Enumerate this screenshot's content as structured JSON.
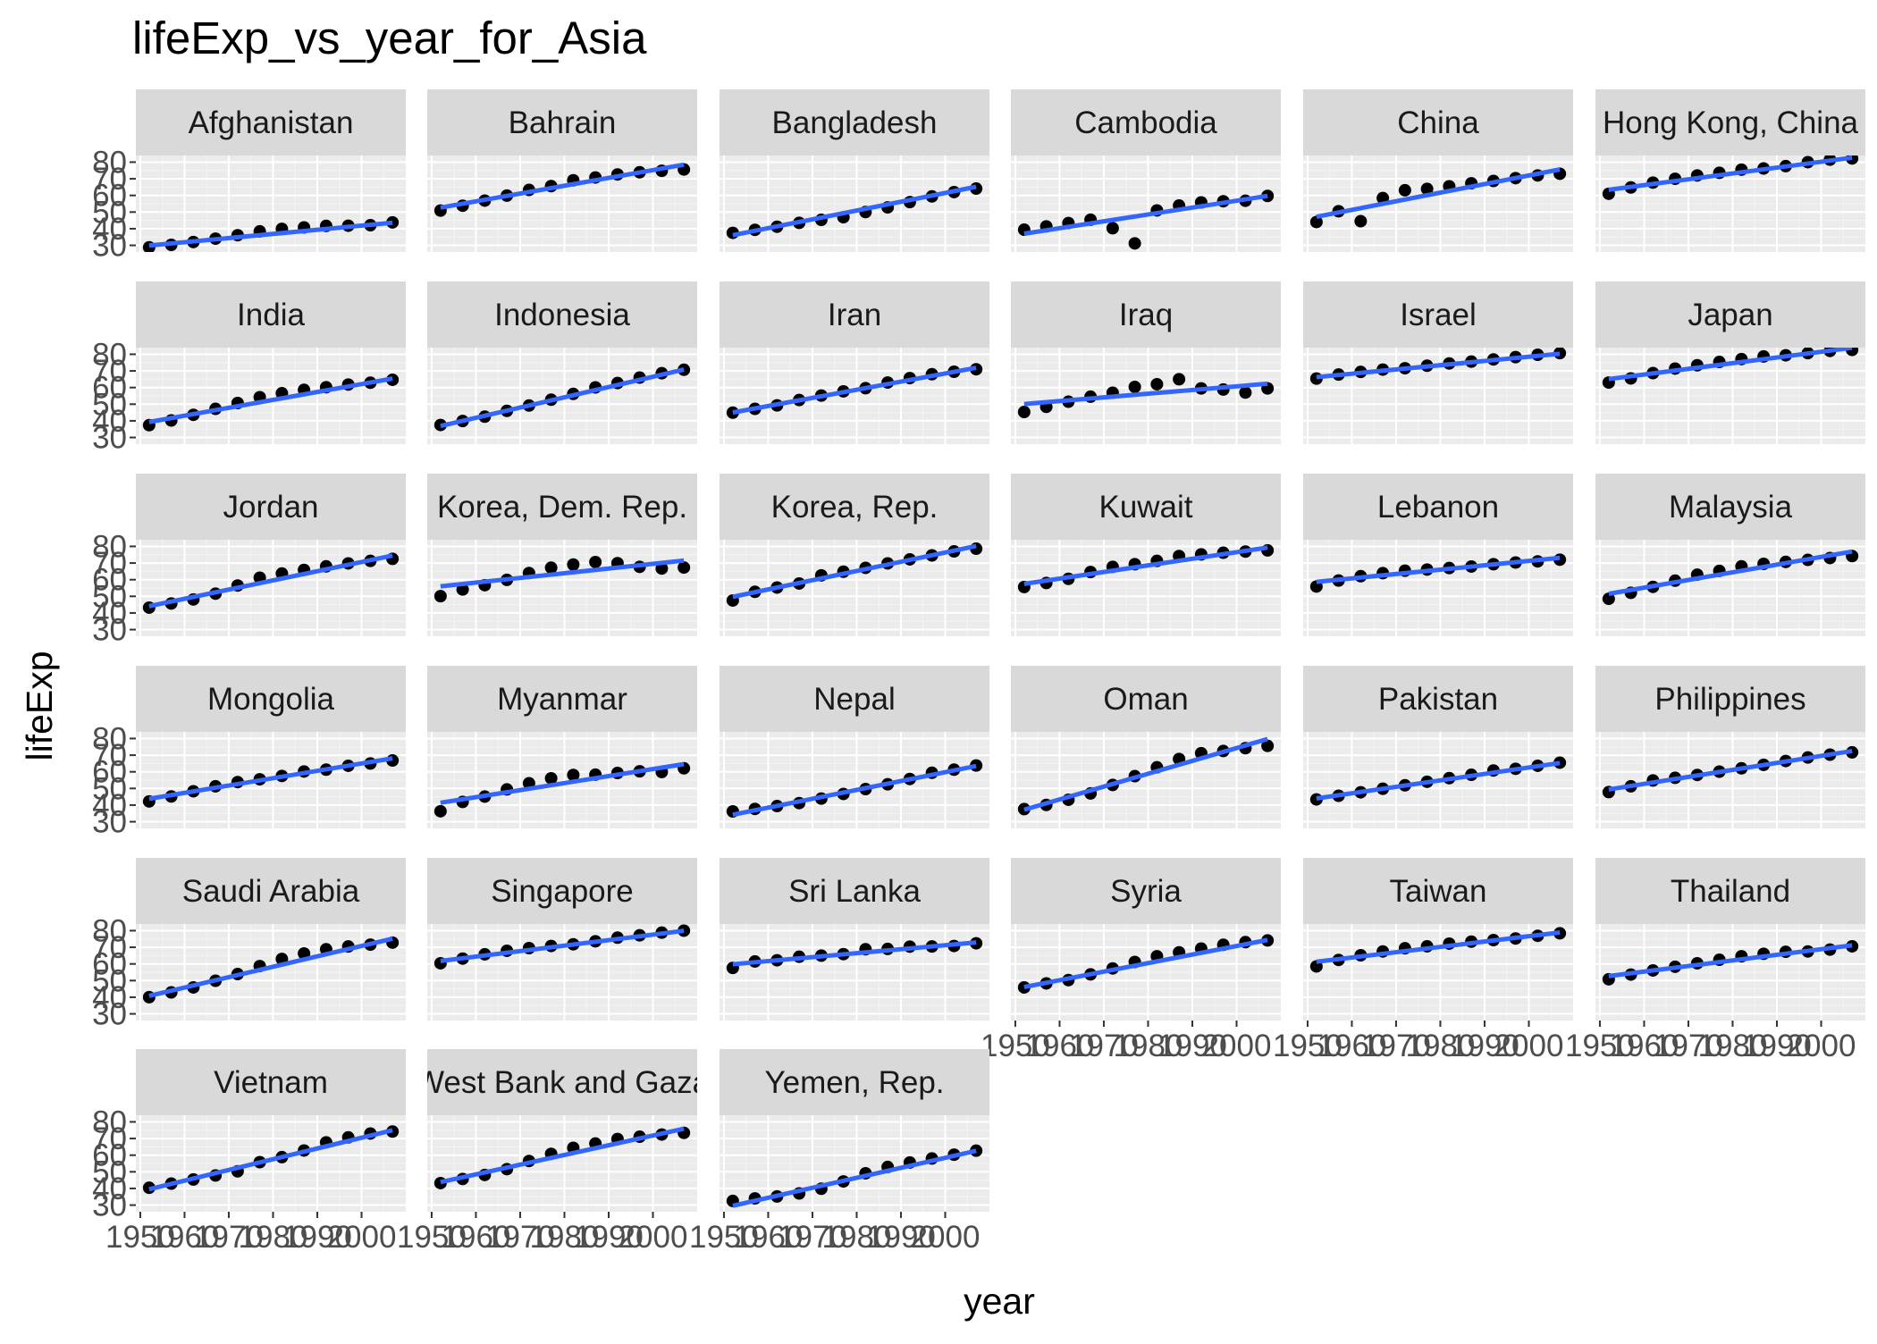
{
  "chart_data": {
    "type": "scatter",
    "title": "lifeExp_vs_year_for_Asia",
    "xlabel": "year",
    "ylabel": "lifeExp",
    "xlim": [
      1949,
      2010
    ],
    "ylim": [
      26,
      84
    ],
    "x_ticks": [
      1950,
      1960,
      1970,
      1980,
      1990,
      2000
    ],
    "x_tick_labels": [
      "1950",
      "1960",
      "1970",
      "1980",
      "1990",
      "2000"
    ],
    "y_ticks": [
      30,
      40,
      50,
      60,
      70,
      80
    ],
    "y_tick_labels": [
      "30",
      "40",
      "50",
      "60",
      "70",
      "80"
    ],
    "facet_columns": 6,
    "grid": true,
    "panel_background": "#ebebeb",
    "strip_background": "#d9d9d9",
    "point_color": "#000000",
    "line_color": "#3366ff",
    "years": [
      1952,
      1957,
      1962,
      1967,
      1972,
      1977,
      1982,
      1987,
      1992,
      1997,
      2002,
      2007
    ],
    "panels": [
      {
        "name": "Afghanistan",
        "lifeExp": [
          28.8,
          30.3,
          32.0,
          34.0,
          36.1,
          38.4,
          39.9,
          40.8,
          41.7,
          41.8,
          42.1,
          43.8
        ],
        "fit": [
          29.9,
          43.6
        ]
      },
      {
        "name": "Bahrain",
        "lifeExp": [
          50.9,
          53.8,
          56.9,
          59.9,
          63.3,
          65.6,
          69.1,
          70.8,
          72.6,
          73.9,
          74.8,
          75.6
        ],
        "fit": [
          52.7,
          78.5
        ]
      },
      {
        "name": "Bangladesh",
        "lifeExp": [
          37.5,
          39.3,
          41.2,
          43.5,
          45.3,
          46.9,
          50.0,
          52.8,
          56.0,
          59.4,
          62.0,
          64.1
        ],
        "fit": [
          36.1,
          65.2
        ]
      },
      {
        "name": "Cambodia",
        "lifeExp": [
          39.4,
          41.4,
          43.4,
          45.4,
          40.3,
          31.2,
          51.0,
          53.9,
          55.8,
          56.5,
          56.8,
          59.7
        ],
        "fit": [
          37.0,
          59.7
        ]
      },
      {
        "name": "China",
        "lifeExp": [
          44.0,
          50.5,
          44.5,
          58.4,
          63.1,
          63.9,
          65.5,
          67.3,
          68.7,
          70.4,
          72.0,
          73.0
        ],
        "fit": [
          47.2,
          75.6
        ]
      },
      {
        "name": "Hong Kong, China",
        "lifeExp": [
          61.0,
          64.8,
          67.7,
          70.0,
          72.0,
          73.6,
          75.5,
          76.2,
          77.6,
          80.0,
          81.5,
          82.2
        ],
        "fit": [
          63.4,
          82.7
        ]
      },
      {
        "name": "India",
        "lifeExp": [
          37.4,
          40.2,
          43.6,
          47.2,
          50.7,
          54.2,
          56.6,
          58.6,
          60.2,
          61.8,
          62.9,
          64.7
        ],
        "fit": [
          39.3,
          65.4
        ]
      },
      {
        "name": "Indonesia",
        "lifeExp": [
          37.5,
          39.9,
          42.5,
          46.0,
          49.2,
          52.7,
          56.2,
          60.1,
          62.7,
          66.0,
          68.6,
          70.7
        ],
        "fit": [
          36.9,
          70.8
        ]
      },
      {
        "name": "Iran",
        "lifeExp": [
          44.9,
          47.2,
          49.3,
          52.5,
          55.2,
          57.7,
          59.6,
          63.0,
          65.7,
          68.0,
          69.5,
          71.0
        ],
        "fit": [
          45.0,
          71.9
        ]
      },
      {
        "name": "Iraq",
        "lifeExp": [
          45.3,
          48.4,
          51.5,
          54.5,
          56.9,
          60.4,
          62.0,
          65.0,
          59.5,
          58.8,
          57.0,
          59.5
        ],
        "fit": [
          50.1,
          62.3
        ]
      },
      {
        "name": "Israel",
        "lifeExp": [
          65.4,
          67.8,
          69.4,
          70.8,
          71.6,
          73.1,
          74.5,
          75.6,
          76.9,
          78.3,
          79.7,
          80.7
        ],
        "fit": [
          66.3,
          80.3
        ]
      },
      {
        "name": "Japan",
        "lifeExp": [
          63.0,
          65.5,
          68.7,
          71.4,
          73.4,
          75.4,
          77.1,
          78.7,
          79.4,
          80.7,
          82.0,
          82.6
        ],
        "fit": [
          65.1,
          83.9
        ]
      },
      {
        "name": "Jordan",
        "lifeExp": [
          43.2,
          45.7,
          48.1,
          51.6,
          56.5,
          61.2,
          63.7,
          65.9,
          68.0,
          69.8,
          71.3,
          72.5
        ],
        "fit": [
          44.1,
          74.5
        ]
      },
      {
        "name": "Korea, Dem. Rep.",
        "lifeExp": [
          50.1,
          54.1,
          56.7,
          59.9,
          64.0,
          67.2,
          69.1,
          70.6,
          69.9,
          67.7,
          66.7,
          67.3
        ],
        "fit": [
          56.0,
          71.5
        ]
      },
      {
        "name": "Korea, Rep.",
        "lifeExp": [
          47.5,
          52.7,
          55.3,
          57.7,
          62.6,
          64.8,
          67.1,
          69.8,
          72.2,
          74.6,
          77.0,
          78.6
        ],
        "fit": [
          49.7,
          80.2
        ]
      },
      {
        "name": "Kuwait",
        "lifeExp": [
          55.6,
          58.0,
          60.5,
          64.6,
          67.7,
          69.3,
          71.3,
          74.2,
          75.2,
          76.2,
          76.9,
          77.6
        ],
        "fit": [
          57.5,
          79.3
        ]
      },
      {
        "name": "Lebanon",
        "lifeExp": [
          55.9,
          59.5,
          62.1,
          63.9,
          65.4,
          66.1,
          67.0,
          67.9,
          69.3,
          70.3,
          71.0,
          72.0
        ],
        "fit": [
          58.7,
          73.1
        ]
      },
      {
        "name": "Malaysia",
        "lifeExp": [
          48.5,
          52.1,
          55.7,
          59.4,
          63.0,
          65.3,
          68.0,
          69.5,
          70.7,
          71.9,
          73.0,
          74.2
        ],
        "fit": [
          51.5,
          76.9
        ]
      },
      {
        "name": "Mongolia",
        "lifeExp": [
          42.2,
          45.2,
          48.3,
          51.3,
          53.8,
          55.5,
          57.5,
          60.2,
          61.3,
          63.6,
          65.0,
          66.8
        ],
        "fit": [
          43.8,
          68.1
        ]
      },
      {
        "name": "Myanmar",
        "lifeExp": [
          36.3,
          41.9,
          45.1,
          49.4,
          53.1,
          56.1,
          58.1,
          58.3,
          59.3,
          60.3,
          59.9,
          62.1
        ],
        "fit": [
          41.4,
          64.6
        ]
      },
      {
        "name": "Nepal",
        "lifeExp": [
          36.2,
          37.7,
          39.4,
          41.2,
          43.9,
          46.7,
          49.6,
          52.5,
          55.7,
          59.4,
          61.3,
          63.8
        ],
        "fit": [
          34.2,
          63.5
        ]
      },
      {
        "name": "Oman",
        "lifeExp": [
          37.6,
          40.1,
          43.2,
          47.0,
          52.1,
          57.4,
          62.7,
          67.7,
          71.2,
          72.5,
          74.2,
          75.6
        ],
        "fit": [
          37.2,
          79.7
        ]
      },
      {
        "name": "Pakistan",
        "lifeExp": [
          43.4,
          45.6,
          47.7,
          49.8,
          51.9,
          54.0,
          56.2,
          58.2,
          60.8,
          61.8,
          63.6,
          65.5
        ],
        "fit": [
          44.0,
          65.3
        ]
      },
      {
        "name": "Philippines",
        "lifeExp": [
          47.8,
          51.3,
          54.8,
          56.4,
          58.1,
          60.1,
          62.1,
          64.2,
          66.5,
          68.6,
          70.3,
          71.7
        ],
        "fit": [
          49.4,
          72.5
        ]
      },
      {
        "name": "Saudi Arabia",
        "lifeExp": [
          40.0,
          42.9,
          45.9,
          49.9,
          53.9,
          58.7,
          63.0,
          66.3,
          68.8,
          70.5,
          71.6,
          72.8
        ],
        "fit": [
          40.8,
          75.2
        ]
      },
      {
        "name": "Singapore",
        "lifeExp": [
          60.4,
          63.2,
          65.8,
          67.9,
          69.5,
          70.8,
          71.8,
          73.6,
          75.8,
          77.2,
          78.8,
          80.0
        ],
        "fit": [
          61.8,
          79.9
        ]
      },
      {
        "name": "Sri Lanka",
        "lifeExp": [
          57.6,
          61.5,
          62.2,
          64.3,
          65.0,
          65.9,
          68.8,
          69.0,
          70.4,
          70.5,
          70.8,
          72.4
        ],
        "fit": [
          59.8,
          72.9
        ]
      },
      {
        "name": "Syria",
        "lifeExp": [
          45.9,
          48.3,
          50.3,
          53.7,
          57.3,
          61.2,
          64.6,
          66.97,
          69.2,
          71.5,
          73.1,
          74.1
        ],
        "fit": [
          46.1,
          74.4
        ]
      },
      {
        "name": "Taiwan",
        "lifeExp": [
          58.5,
          62.4,
          65.2,
          67.5,
          69.4,
          70.6,
          72.2,
          73.4,
          74.3,
          75.3,
          76.9,
          78.4
        ],
        "fit": [
          61.3,
          78.9
        ]
      },
      {
        "name": "Thailand",
        "lifeExp": [
          50.8,
          53.6,
          56.1,
          58.3,
          60.4,
          62.5,
          64.6,
          66.1,
          67.3,
          67.5,
          68.6,
          70.6
        ],
        "fit": [
          52.7,
          71.2
        ]
      },
      {
        "name": "Vietnam",
        "lifeExp": [
          40.4,
          42.9,
          45.4,
          47.8,
          50.3,
          55.8,
          58.8,
          62.8,
          67.7,
          70.7,
          73.0,
          74.2
        ],
        "fit": [
          39.5,
          75.0
        ]
      },
      {
        "name": "West Bank and Gaza",
        "lifeExp": [
          43.2,
          45.7,
          48.1,
          51.6,
          56.5,
          60.8,
          64.4,
          67.0,
          69.7,
          71.1,
          72.4,
          73.4
        ],
        "fit": [
          43.8,
          75.9
        ]
      },
      {
        "name": "Yemen, Rep.",
        "lifeExp": [
          32.5,
          34.0,
          35.2,
          37.0,
          39.8,
          44.2,
          49.1,
          52.9,
          55.6,
          58.0,
          60.3,
          62.7
        ],
        "fit": [
          29.6,
          62.6
        ]
      }
    ]
  }
}
